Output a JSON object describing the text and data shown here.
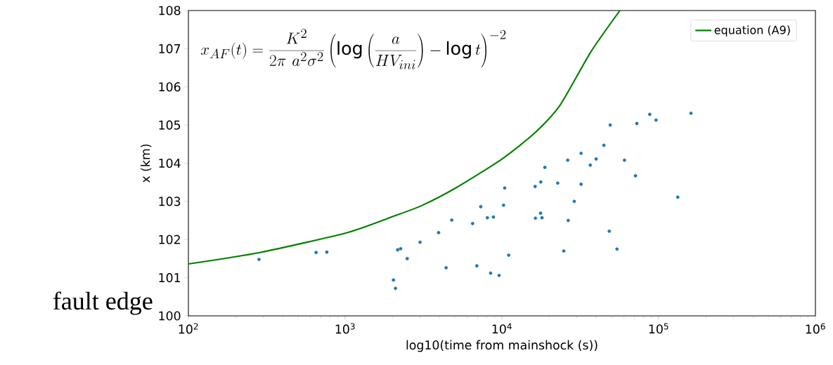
{
  "chart_data": {
    "type": "scatter",
    "xlabel": "log10(time from mainshock (s))",
    "ylabel": "x (km)",
    "log": "x",
    "legend": "top right",
    "xlim": [
      100,
      1000000
    ],
    "ylim": [
      100,
      108
    ],
    "xticks": [
      {
        "value": 100,
        "label": "10$^{2}$"
      },
      {
        "value": 1000,
        "label": "10$^{3}$"
      },
      {
        "value": 10000,
        "label": "10$^{4}$"
      },
      {
        "value": 100000,
        "label": "10$^{5}$"
      },
      {
        "value": 1000000,
        "label": "10$^{6}$"
      }
    ],
    "yticks": [
      100,
      101,
      102,
      103,
      104,
      105,
      106,
      107,
      108
    ],
    "annotations": [
      "x_{AF}(t)=\\frac{K^2}{2\\pi\\ a^2\\sigma^2}\\left(\\log\\left(\\frac{a}{HV_{ini}}\\right)-\\log t\\right)^{-2}",
      "fault edge"
    ],
    "series": [
      {
        "name": "equation (A9)",
        "type": "line",
        "color": "#008000",
        "marker": "none",
        "x": [
          100,
          286,
          1028,
          2037,
          3083,
          5164,
          10000,
          16070,
          23500,
          36700,
          56600
        ],
        "values": [
          101.36,
          101.66,
          102.18,
          102.61,
          102.89,
          103.37,
          104.11,
          104.78,
          105.52,
          106.9,
          108
        ]
      },
      {
        "color": "#1f77b4",
        "marker": "circle",
        "x": [
          282,
          653,
          764,
          2032,
          2094,
          2163,
          2260,
          2488,
          3006,
          3945,
          4406,
          4786,
          6500,
          6918,
          7330,
          8075,
          8472,
          8830,
          9595,
          10240,
          10420,
          11050,
          16280,
          16360,
          17650,
          17700,
          18020,
          18790,
          22690,
          24810,
          26300,
          26470,
          28950,
          32010,
          32010,
          36620,
          39930,
          44700,
          48400,
          49070,
          54200,
          60500,
          71150,
          72550,
          87700,
          96200,
          132400,
          160700
        ],
        "values": [
          101.48,
          101.66,
          101.67,
          100.94,
          100.72,
          101.73,
          101.76,
          101.5,
          101.93,
          102.18,
          101.26,
          102.51,
          102.42,
          101.31,
          102.86,
          102.57,
          101.12,
          102.59,
          101.06,
          102.9,
          103.35,
          101.59,
          103.39,
          102.56,
          102.69,
          103.51,
          102.57,
          103.89,
          103.48,
          101.7,
          104.08,
          102.5,
          103.0,
          104.26,
          103.45,
          103.95,
          104.11,
          104.47,
          102.22,
          105.0,
          101.75,
          104.08,
          103.67,
          105.04,
          105.28,
          105.13,
          103.11,
          105.31
        ]
      }
    ]
  }
}
